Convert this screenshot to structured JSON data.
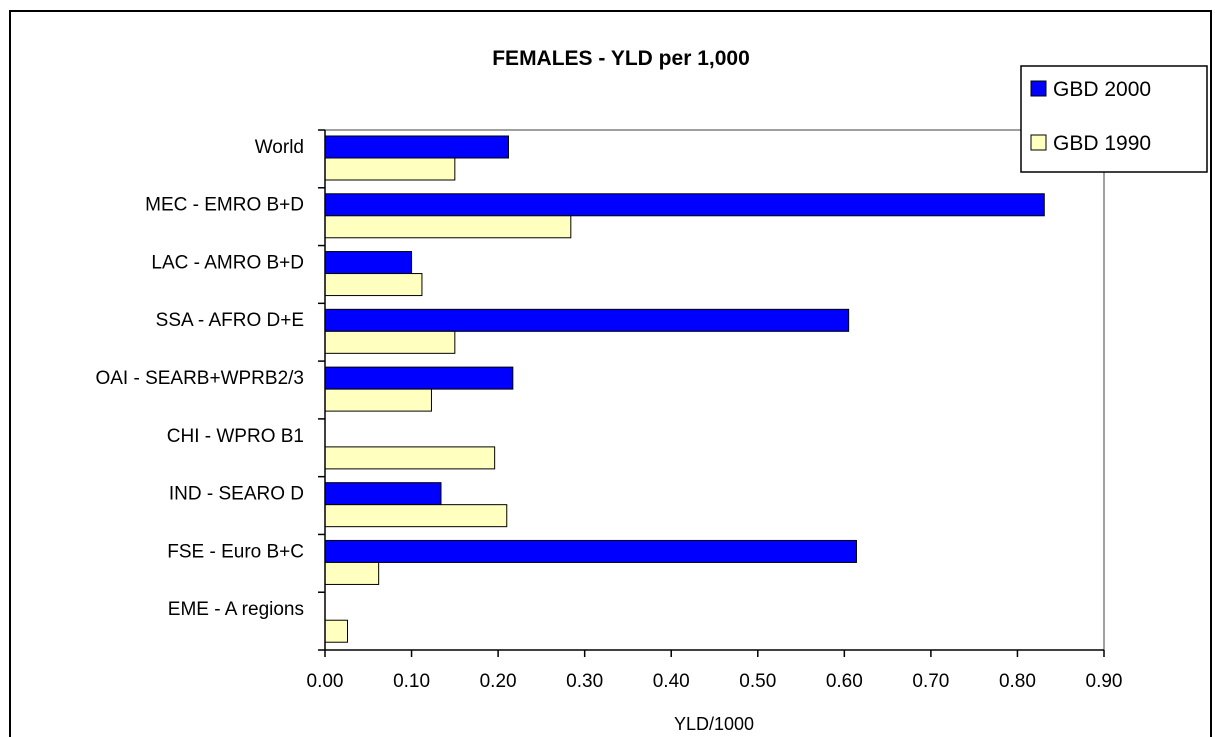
{
  "chart_data": {
    "type": "bar",
    "orientation": "horizontal",
    "title": "FEMALES - YLD per 1,000",
    "xlabel": "YLD/1000",
    "ylabel": "",
    "xlim": [
      0,
      0.9
    ],
    "xticks": [
      "0.00",
      "0.10",
      "0.20",
      "0.30",
      "0.40",
      "0.50",
      "0.60",
      "0.70",
      "0.80",
      "0.90"
    ],
    "grid": false,
    "legend_position": "top-right",
    "categories": [
      "World",
      "MEC - EMRO B+D",
      "LAC - AMRO B+D",
      "SSA - AFRO D+E",
      "OAI - SEARB+WPRB2/3",
      "CHI - WPRO B1",
      "IND - SEARO D",
      "FSE - Euro B+C",
      "EME - A regions"
    ],
    "series": [
      {
        "name": "GBD 2000",
        "color": "#0000ff",
        "values": [
          0.212,
          0.831,
          0.1,
          0.605,
          0.217,
          0,
          0.134,
          0.614,
          0
        ]
      },
      {
        "name": "GBD 1990",
        "color": "#ffffc0",
        "values": [
          0.15,
          0.284,
          0.112,
          0.15,
          0.123,
          0.196,
          0.21,
          0.062,
          0.026
        ]
      }
    ]
  }
}
